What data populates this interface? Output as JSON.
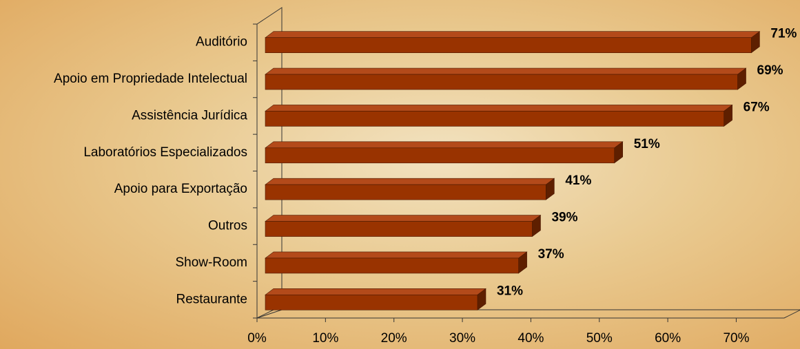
{
  "chart_data": {
    "type": "bar3d-horizontal",
    "categories": [
      "Auditório",
      "Apoio em Propriedade Intelectual",
      "Assistência Jurídica",
      "Laboratórios Especializados",
      "Apoio para Exportação",
      "Outros",
      "Show-Room",
      "Restaurante"
    ],
    "values": [
      71,
      69,
      67,
      51,
      41,
      39,
      37,
      31
    ],
    "value_labels": [
      "71%",
      "69%",
      "67%",
      "51%",
      "41%",
      "39%",
      "37%",
      "31%"
    ],
    "color": "#993300",
    "xlim": [
      0,
      77
    ],
    "xticks": [
      {
        "value": 0,
        "label": "0%"
      },
      {
        "value": 10,
        "label": "10%"
      },
      {
        "value": 20,
        "label": "20%"
      },
      {
        "value": 30,
        "label": "30%"
      },
      {
        "value": 40,
        "label": "40%"
      },
      {
        "value": 50,
        "label": "50%"
      },
      {
        "value": 60,
        "label": "60%"
      },
      {
        "value": 70,
        "label": "70%"
      }
    ]
  }
}
